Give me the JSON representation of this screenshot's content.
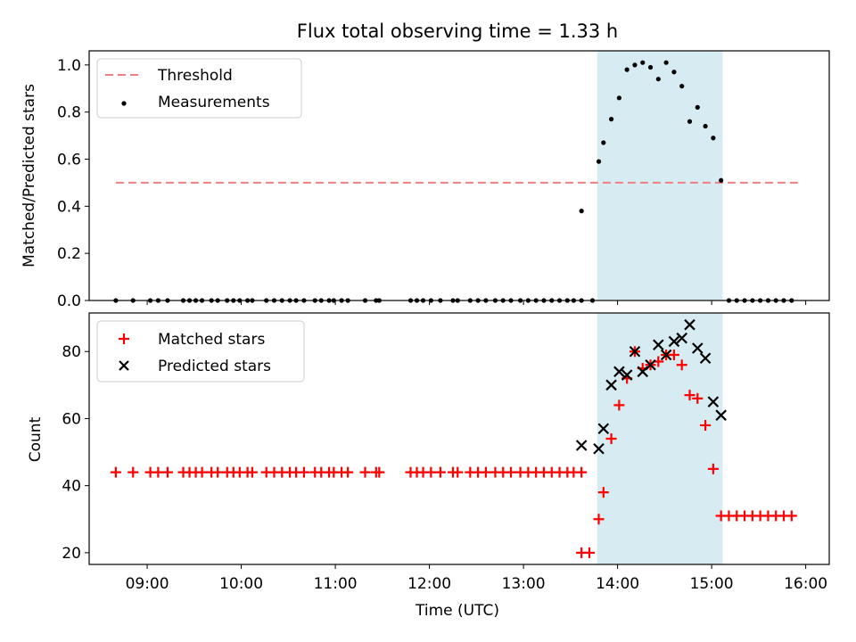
{
  "title": "Flux total observing time = 1.33 h",
  "colors": {
    "threshold": "#f08080",
    "measurement": "#000000",
    "matched": "#ff0000",
    "predicted": "#000000",
    "span": "#add8e6"
  },
  "chart_data": [
    {
      "type": "scatter",
      "panel": "top",
      "ylabel": "Matched/Predicted stars",
      "xlim": [
        "08:23",
        "16:15"
      ],
      "ylim": [
        0,
        1.06
      ],
      "yticks": [
        "0.0",
        "0.2",
        "0.4",
        "0.6",
        "0.8",
        "1.0"
      ],
      "grid": false,
      "legend_position": "upper-left",
      "span": {
        "x0": "13:47",
        "x1": "15:07",
        "color": "#add8e6"
      },
      "threshold": {
        "name": "Threshold",
        "y": 0.5,
        "x0": "08:40",
        "x1": "15:55"
      },
      "measurements": {
        "name": "Measurements",
        "x": [
          "08:40",
          "08:51",
          "09:02",
          "09:07",
          "09:13",
          "09:23",
          "09:27",
          "09:31",
          "09:35",
          "09:41",
          "09:45",
          "09:51",
          "09:55",
          "09:59",
          "10:04",
          "10:07",
          "10:16",
          "10:21",
          "10:26",
          "10:31",
          "10:35",
          "10:40",
          "10:47",
          "10:51",
          "10:56",
          "10:59",
          "11:04",
          "11:08",
          "11:19",
          "11:26",
          "11:28",
          "11:48",
          "11:52",
          "11:56",
          "12:01",
          "12:07",
          "12:15",
          "12:18",
          "12:26",
          "12:31",
          "12:36",
          "12:42",
          "12:47",
          "12:52",
          "12:58",
          "13:03",
          "13:08",
          "13:13",
          "13:18",
          "13:23",
          "13:28",
          "13:32",
          "13:37",
          "13:44",
          "13:37",
          "13:48",
          "13:51",
          "13:56",
          "14:01",
          "14:06",
          "14:11",
          "14:16",
          "14:21",
          "14:26",
          "14:31",
          "14:36",
          "14:41",
          "14:46",
          "14:51",
          "14:56",
          "15:01",
          "15:06",
          "15:11",
          "15:16",
          "15:21",
          "15:26",
          "15:31",
          "15:36",
          "15:41",
          "15:46",
          "15:51"
        ],
        "y": [
          0,
          0,
          0,
          0,
          0,
          0,
          0,
          0,
          0,
          0,
          0,
          0,
          0,
          0,
          0,
          0,
          0,
          0,
          0,
          0,
          0,
          0,
          0,
          0,
          0,
          0,
          0,
          0,
          0,
          0,
          0,
          0,
          0,
          0,
          0,
          0,
          0,
          0,
          0,
          0,
          0,
          0,
          0,
          0,
          0,
          0,
          0,
          0,
          0,
          0,
          0,
          0,
          0,
          0,
          0.38,
          0.59,
          0.67,
          0.77,
          0.86,
          0.98,
          1.0,
          1.01,
          0.99,
          0.94,
          1.01,
          0.97,
          0.91,
          0.76,
          0.82,
          0.74,
          0.69,
          0.51,
          0,
          0,
          0,
          0,
          0,
          0,
          0,
          0,
          0
        ]
      }
    },
    {
      "type": "scatter",
      "panel": "bottom",
      "xlabel": "Time (UTC)",
      "ylabel": "Count",
      "xlim": [
        "08:23",
        "16:15"
      ],
      "ylim": [
        16.5,
        91.5
      ],
      "yticks": [
        "20",
        "40",
        "60",
        "80"
      ],
      "xticks": [
        "09:00",
        "10:00",
        "11:00",
        "12:00",
        "13:00",
        "14:00",
        "15:00",
        "16:00"
      ],
      "grid": false,
      "legend_position": "upper-left",
      "span": {
        "x0": "13:47",
        "x1": "15:07",
        "color": "#add8e6"
      },
      "series": [
        {
          "name": "Matched stars",
          "x": [
            "08:40",
            "08:51",
            "09:02",
            "09:07",
            "09:13",
            "09:23",
            "09:27",
            "09:31",
            "09:35",
            "09:41",
            "09:45",
            "09:51",
            "09:55",
            "09:59",
            "10:04",
            "10:07",
            "10:16",
            "10:21",
            "10:26",
            "10:31",
            "10:35",
            "10:40",
            "10:47",
            "10:51",
            "10:56",
            "10:59",
            "11:04",
            "11:08",
            "11:19",
            "11:26",
            "11:28",
            "11:48",
            "11:52",
            "11:56",
            "12:01",
            "12:07",
            "12:15",
            "12:18",
            "12:26",
            "12:31",
            "12:36",
            "12:42",
            "12:47",
            "12:52",
            "12:58",
            "13:03",
            "13:08",
            "13:13",
            "13:18",
            "13:23",
            "13:28",
            "13:32",
            "13:37",
            "13:37",
            "13:42",
            "13:48",
            "13:51",
            "13:56",
            "14:01",
            "14:06",
            "14:11",
            "14:16",
            "14:21",
            "14:26",
            "14:31",
            "14:36",
            "14:41",
            "14:46",
            "14:51",
            "14:56",
            "15:01",
            "15:06",
            "15:11",
            "15:16",
            "15:21",
            "15:26",
            "15:31",
            "15:36",
            "15:41",
            "15:46",
            "15:51"
          ],
          "y": [
            44,
            44,
            44,
            44,
            44,
            44,
            44,
            44,
            44,
            44,
            44,
            44,
            44,
            44,
            44,
            44,
            44,
            44,
            44,
            44,
            44,
            44,
            44,
            44,
            44,
            44,
            44,
            44,
            44,
            44,
            44,
            44,
            44,
            44,
            44,
            44,
            44,
            44,
            44,
            44,
            44,
            44,
            44,
            44,
            44,
            44,
            44,
            44,
            44,
            44,
            44,
            44,
            44,
            20,
            20,
            30,
            38,
            54,
            64,
            72,
            80,
            75,
            76,
            77,
            79,
            79,
            76,
            67,
            66,
            58,
            45,
            31,
            31,
            31,
            31,
            31,
            31,
            31,
            31,
            31,
            31
          ]
        },
        {
          "name": "Predicted stars",
          "x": [
            "13:37",
            "13:48",
            "13:51",
            "13:56",
            "14:01",
            "14:06",
            "14:11",
            "14:16",
            "14:21",
            "14:26",
            "14:31",
            "14:36",
            "14:41",
            "14:46",
            "14:51",
            "14:56",
            "15:01",
            "15:06"
          ],
          "y": [
            52,
            51,
            57,
            70,
            74,
            73,
            80,
            74,
            76,
            82,
            79,
            83,
            84,
            88,
            81,
            78,
            65,
            61
          ]
        }
      ]
    }
  ]
}
